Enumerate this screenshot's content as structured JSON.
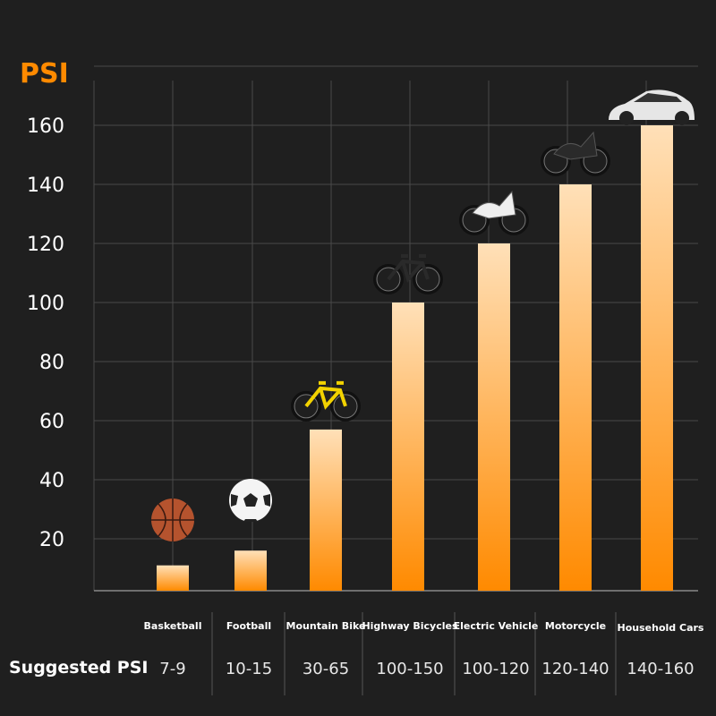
{
  "chart_data": {
    "type": "bar",
    "title": "PSI",
    "ylabel": "PSI",
    "xlabel": "",
    "ylim": [
      0,
      180
    ],
    "yticks": [
      20,
      40,
      60,
      80,
      100,
      120,
      140,
      160
    ],
    "grid": true,
    "categories": [
      "Basketball",
      "Football",
      "Mountain Bike",
      "Highway Bicycles",
      "Electric Vehicle",
      "Motorcycle",
      "Household Cars"
    ],
    "values": [
      11,
      16,
      57,
      100,
      120,
      140,
      160
    ],
    "icons": [
      "basketball-icon",
      "football-icon",
      "mountain-bike-icon",
      "road-bicycle-icon",
      "electric-scooter-icon",
      "motorcycle-icon",
      "car-icon"
    ],
    "table": {
      "row_label": "Suggested PSI",
      "ranges": [
        "7-9",
        "10-15",
        "30-65",
        "100-150",
        "100-120",
        "120-140",
        "140-160"
      ]
    },
    "colors": {
      "bar_top": "#ffe0b8",
      "bar_bottom": "#ff8a00",
      "title": "#ff8a00",
      "background": "#1f1f1f",
      "grid": "#4a4a4a"
    }
  }
}
